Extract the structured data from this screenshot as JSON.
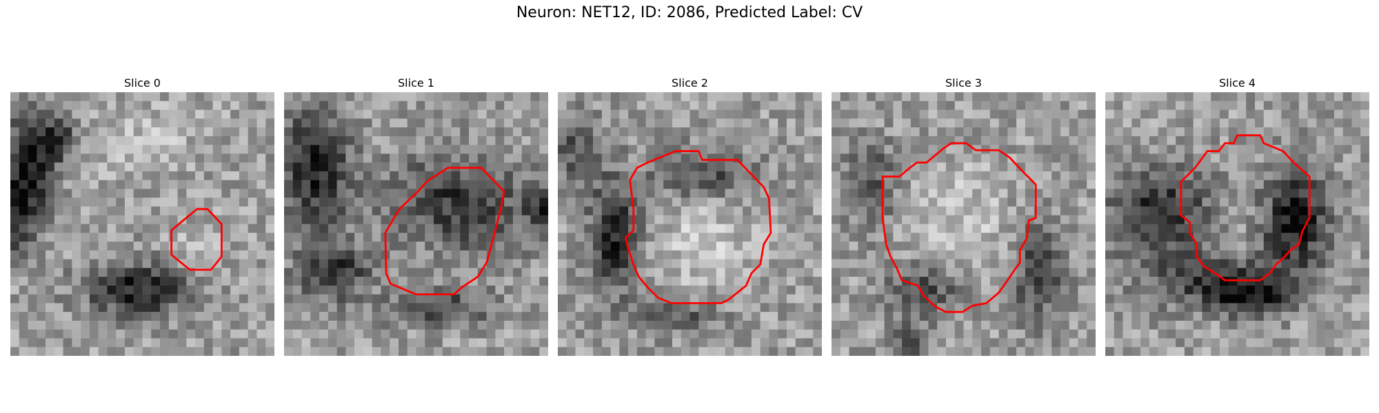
{
  "figure": {
    "title": "Neuron: NET12, ID: 2086, Predicted Label: CV"
  },
  "panels": [
    {
      "title": "Slice 0",
      "contour_color": "#ff0000"
    },
    {
      "title": "Slice 1",
      "contour_color": "#ff0000"
    },
    {
      "title": "Slice 2",
      "contour_color": "#ff0000"
    },
    {
      "title": "Slice 3",
      "contour_color": "#ff0000"
    },
    {
      "title": "Slice 4",
      "contour_color": "#ff0000"
    }
  ]
}
